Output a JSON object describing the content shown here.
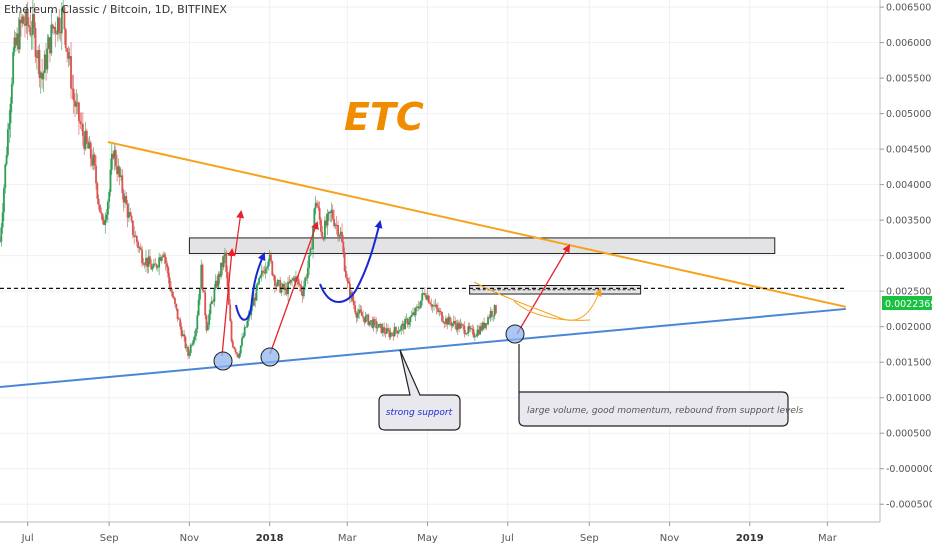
{
  "header": {
    "title": "Ethereum Classic / Bitcoin, 1D, BITFINEX"
  },
  "annotations": {
    "etc_label": "ETC",
    "strong_support": "strong support",
    "callout_text": "large volume, good momentum, rebound from support levels",
    "current_price": "0.0022369"
  },
  "colors": {
    "resistance_line": "#f7a21b",
    "support_line": "#4a86d8",
    "bull_candle": "#2e9e56",
    "bear_candle": "#d9534f",
    "red_arrow": "#e8212b",
    "blue_arrow": "#1a28d4",
    "price_tag": "#18c23f",
    "etc_text": "#f08c00"
  },
  "chart_data": {
    "type": "candlestick",
    "title": "Ethereum Classic / Bitcoin, 1D, BITFINEX",
    "y_axis": {
      "position": "right",
      "range": [
        -0.00075,
        0.0066
      ],
      "ticks": [
        "0.0065000",
        "0.0060000",
        "0.0055000",
        "0.0050000",
        "0.0045000",
        "0.0040000",
        "0.0035000",
        "0.0030000",
        "0.0025000",
        "0.0020000",
        "0.0015000",
        "0.0010000",
        "0.0005000",
        "-0.0000000",
        "-0.0005000"
      ],
      "tick_values": [
        0.0065,
        0.006,
        0.0055,
        0.005,
        0.0045,
        0.004,
        0.0035,
        0.003,
        0.0025,
        0.002,
        0.0015,
        0.001,
        0.0005,
        0,
        -0.0005
      ]
    },
    "x_axis": {
      "range": [
        "2017-06-10",
        "2019-04-10"
      ],
      "ticks": [
        {
          "date": "2017-07-01",
          "label": "Jul"
        },
        {
          "date": "2017-09-01",
          "label": "Sep"
        },
        {
          "date": "2017-11-01",
          "label": "Nov"
        },
        {
          "date": "2018-01-01",
          "label": "2018",
          "bold": true
        },
        {
          "date": "2018-03-01",
          "label": "Mar"
        },
        {
          "date": "2018-05-01",
          "label": "May"
        },
        {
          "date": "2018-07-01",
          "label": "Jul"
        },
        {
          "date": "2018-09-01",
          "label": "Sep"
        },
        {
          "date": "2018-11-01",
          "label": "Nov"
        },
        {
          "date": "2019-01-01",
          "label": "2019",
          "bold": true
        },
        {
          "date": "2019-03-01",
          "label": "Mar"
        }
      ]
    },
    "price_path": [
      [
        "2017-06-10",
        0.0032
      ],
      [
        "2017-06-15",
        0.0045
      ],
      [
        "2017-06-20",
        0.0058
      ],
      [
        "2017-06-27",
        0.0063
      ],
      [
        "2017-07-05",
        0.0062
      ],
      [
        "2017-07-12",
        0.0055
      ],
      [
        "2017-07-20",
        0.0062
      ],
      [
        "2017-07-28",
        0.0064
      ],
      [
        "2017-08-05",
        0.0052
      ],
      [
        "2017-08-12",
        0.0047
      ],
      [
        "2017-08-20",
        0.0043
      ],
      [
        "2017-08-27",
        0.0034
      ],
      [
        "2017-09-01",
        0.0039
      ],
      [
        "2017-09-04",
        0.0045
      ],
      [
        "2017-09-10",
        0.004
      ],
      [
        "2017-09-18",
        0.0034
      ],
      [
        "2017-09-26",
        0.003
      ],
      [
        "2017-10-05",
        0.0028
      ],
      [
        "2017-10-12",
        0.0031
      ],
      [
        "2017-10-18",
        0.0025
      ],
      [
        "2017-10-25",
        0.002
      ],
      [
        "2017-10-31",
        0.0016
      ],
      [
        "2017-11-06",
        0.002
      ],
      [
        "2017-11-10",
        0.0028
      ],
      [
        "2017-11-14",
        0.002
      ],
      [
        "2017-11-20",
        0.0025
      ],
      [
        "2017-11-28",
        0.003
      ],
      [
        "2017-12-03",
        0.0018
      ],
      [
        "2017-12-08",
        0.0016
      ],
      [
        "2017-12-14",
        0.002
      ],
      [
        "2017-12-22",
        0.0025
      ],
      [
        "2017-12-31",
        0.003
      ],
      [
        "2018-01-06",
        0.0026
      ],
      [
        "2018-01-13",
        0.0025
      ],
      [
        "2018-01-20",
        0.0027
      ],
      [
        "2018-01-26",
        0.0025
      ],
      [
        "2018-02-01",
        0.003
      ],
      [
        "2018-02-05",
        0.0038
      ],
      [
        "2018-02-10",
        0.0033
      ],
      [
        "2018-02-17",
        0.0036
      ],
      [
        "2018-02-24",
        0.0033
      ],
      [
        "2018-03-01",
        0.0026
      ],
      [
        "2018-03-08",
        0.0022
      ],
      [
        "2018-03-16",
        0.0021
      ],
      [
        "2018-03-24",
        0.002
      ],
      [
        "2018-04-02",
        0.0019
      ],
      [
        "2018-04-12",
        0.002
      ],
      [
        "2018-04-22",
        0.0022
      ],
      [
        "2018-04-29",
        0.0025
      ],
      [
        "2018-05-05",
        0.0023
      ],
      [
        "2018-05-14",
        0.0021
      ],
      [
        "2018-05-26",
        0.002
      ],
      [
        "2018-06-05",
        0.0019
      ],
      [
        "2018-06-12",
        0.002
      ],
      [
        "2018-06-18",
        0.0022
      ],
      [
        "2018-06-22",
        0.00224
      ]
    ],
    "lines": [
      {
        "name": "descending-resistance",
        "from": [
          "2017-08-31",
          0.0046
        ],
        "to": [
          "2019-03-15",
          0.00228
        ],
        "color": "#f7a21b"
      },
      {
        "name": "ascending-support",
        "from": [
          "2017-06-10",
          0.00115
        ],
        "to": [
          "2019-03-15",
          0.00225
        ],
        "color": "#4a86d8"
      },
      {
        "name": "dashed-level",
        "from": [
          "2017-06-10",
          0.00254
        ],
        "to": [
          "2019-03-15",
          0.00254
        ],
        "dashed": true
      }
    ],
    "zones": [
      {
        "from": [
          "2017-11-01",
          0.00325
        ],
        "to": [
          "2019-01-20",
          0.00303
        ]
      },
      {
        "from": [
          "2018-06-02",
          0.00258
        ],
        "to": [
          "2018-10-10",
          0.00246
        ]
      }
    ]
  }
}
